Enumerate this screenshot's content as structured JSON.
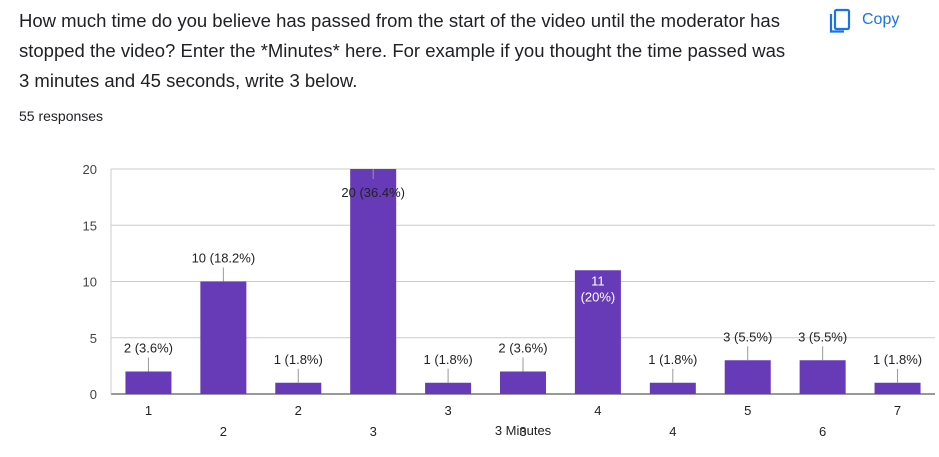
{
  "question": {
    "text": "How much time do you believe has passed from the start of the video until the moderator has stopped the video? Enter the *Minutes* here. For example if you thought the time passed was 3 minutes and 45 seconds, write 3 below.",
    "responses": "55 responses"
  },
  "copy_button": {
    "label": "Copy",
    "icon": "copy-icon",
    "color": "#1a73e8"
  },
  "chart_data": {
    "type": "bar",
    "title": "",
    "xlabel": "3 Minutes",
    "ylabel": "",
    "ylim": [
      0,
      20
    ],
    "yticks": [
      0,
      5,
      10,
      15,
      20
    ],
    "grid": true,
    "bar_color": "#673ab7",
    "categories": [
      "1",
      "2",
      "2",
      "3",
      "3",
      "3",
      "4",
      "4",
      "5",
      "6",
      "7"
    ],
    "values": [
      2,
      10,
      1,
      20,
      1,
      2,
      11,
      1,
      3,
      3,
      1
    ],
    "data_labels": [
      "2 (3.6%)",
      "10 (18.2%)",
      "1 (1.8%)",
      "20 (36.4%)",
      "1 (1.8%)",
      "2 (3.6%)",
      "11 (20%)",
      "1 (1.8%)",
      "3 (5.5%)",
      "3 (5.5%)",
      "1 (1.8%)"
    ]
  }
}
